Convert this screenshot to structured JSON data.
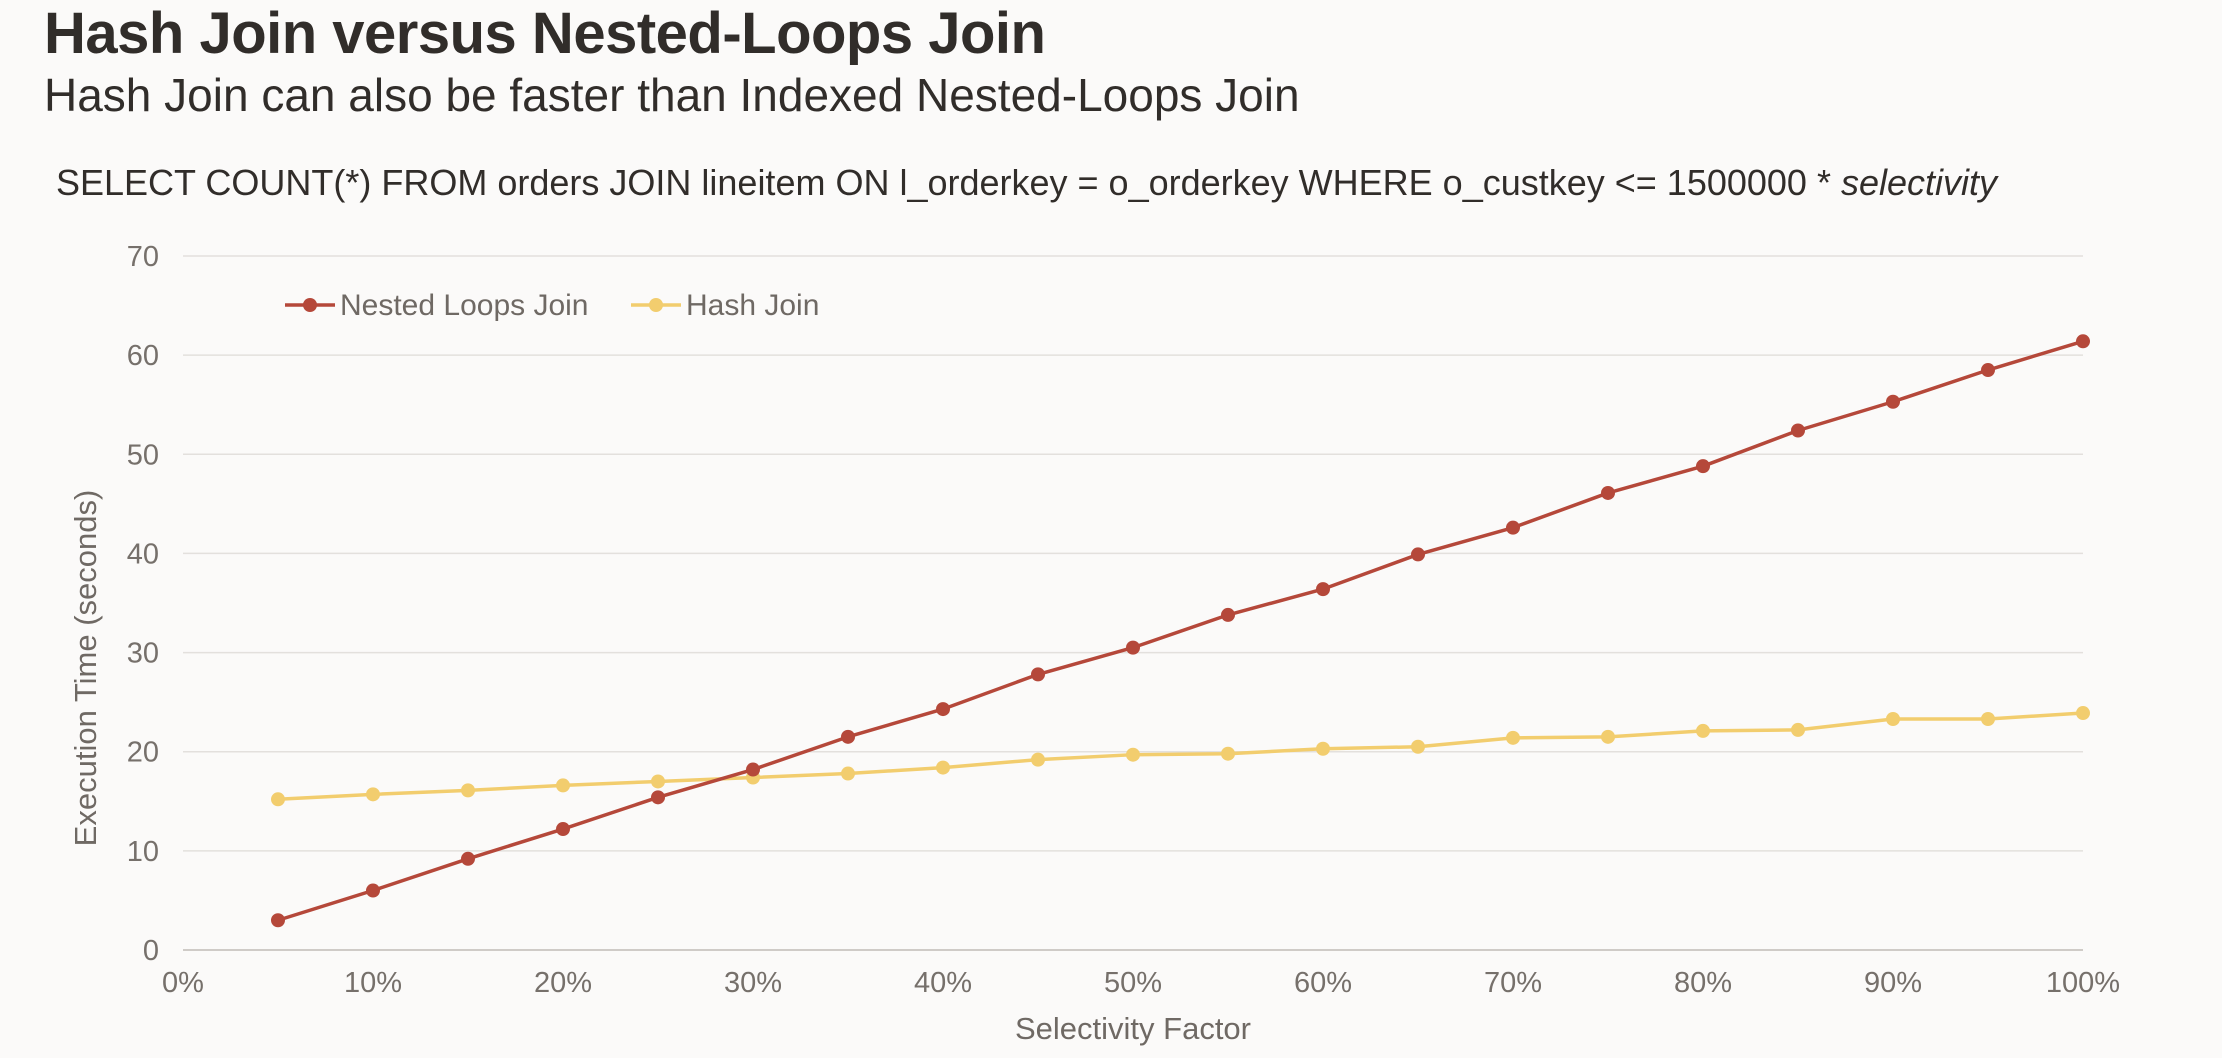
{
  "title": "Hash Join versus Nested-Loops Join",
  "subtitle": "Hash Join can also be faster than Indexed Nested-Loops Join",
  "query": {
    "text": "SELECT COUNT(*) FROM orders JOIN lineitem ON l_orderkey = o_orderkey WHERE o_custkey <= 1500000 * ",
    "italic": "selectivity"
  },
  "colors": {
    "nested_loops": "#b5483a",
    "hash_join": "#f2cd6e",
    "grid": "#e3e0dd",
    "axis": "#cfcbc7"
  },
  "chart_data": {
    "type": "line",
    "xlabel": "Selectivity Factor",
    "ylabel": "Execution Time (seconds)",
    "xlim": [
      0,
      100
    ],
    "ylim": [
      0,
      70
    ],
    "x_ticks": [
      "0%",
      "10%",
      "20%",
      "30%",
      "40%",
      "50%",
      "60%",
      "70%",
      "80%",
      "90%",
      "100%"
    ],
    "y_ticks": [
      "0",
      "10",
      "20",
      "30",
      "40",
      "50",
      "60",
      "70"
    ],
    "grid": true,
    "legend_position": "top-left",
    "x": [
      5,
      10,
      15,
      20,
      25,
      30,
      35,
      40,
      45,
      50,
      55,
      60,
      65,
      70,
      75,
      80,
      85,
      90,
      95,
      100
    ],
    "series": [
      {
        "name": "Nested Loops Join",
        "color": "#b5483a",
        "values": [
          3.0,
          6.0,
          9.2,
          12.2,
          15.4,
          18.2,
          21.5,
          24.3,
          27.8,
          30.5,
          33.8,
          36.4,
          39.9,
          42.6,
          46.1,
          48.8,
          52.4,
          55.3,
          58.5,
          61.4
        ]
      },
      {
        "name": "Hash Join",
        "color": "#f2cd6e",
        "values": [
          15.2,
          15.7,
          16.1,
          16.6,
          17.0,
          17.4,
          17.8,
          18.4,
          19.2,
          19.7,
          19.8,
          20.3,
          20.5,
          21.4,
          21.5,
          22.1,
          22.2,
          23.3,
          23.3,
          23.9
        ]
      }
    ]
  }
}
